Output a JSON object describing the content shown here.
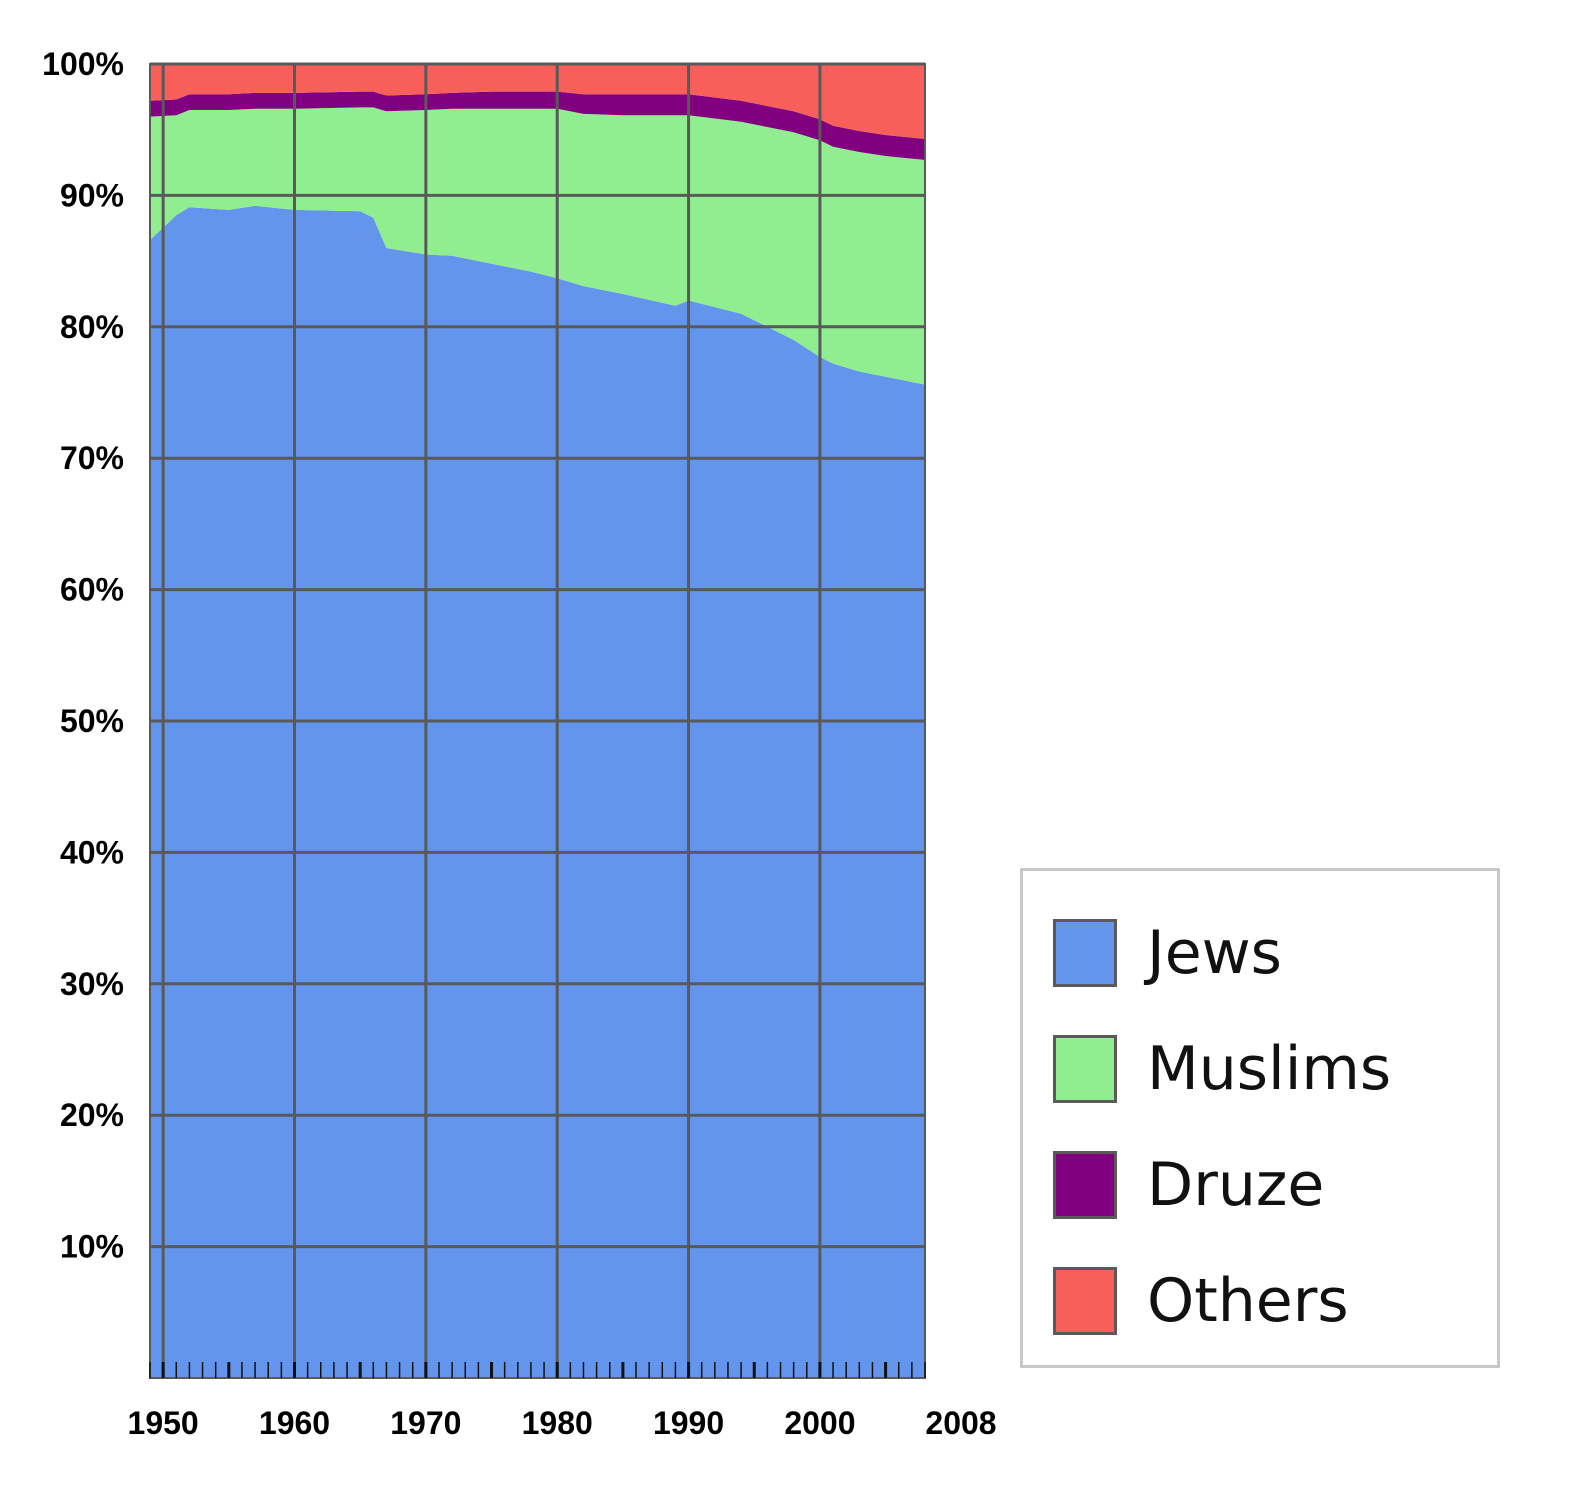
{
  "chart_data": {
    "type": "area",
    "stacked": true,
    "x": [
      1949,
      1951,
      1952,
      1955,
      1957,
      1960,
      1965,
      1966,
      1967,
      1970,
      1972,
      1975,
      1978,
      1980,
      1982,
      1985,
      1989,
      1990,
      1994,
      1995,
      1998,
      2000,
      2001,
      2003,
      2005,
      2007,
      2008
    ],
    "series": [
      {
        "name": "Jews",
        "color": "#6495ED",
        "values": [
          86.6,
          88.5,
          89.1,
          88.9,
          89.2,
          88.9,
          88.8,
          88.3,
          86.0,
          85.5,
          85.4,
          84.8,
          84.2,
          83.7,
          83.1,
          82.5,
          81.6,
          82.0,
          81.0,
          80.5,
          79.0,
          77.7,
          77.2,
          76.6,
          76.2,
          75.8,
          75.6
        ]
      },
      {
        "name": "Muslims",
        "color": "#90EE90",
        "values": [
          9.4,
          7.6,
          7.4,
          7.6,
          7.4,
          7.7,
          7.9,
          8.4,
          10.4,
          11.0,
          11.2,
          11.8,
          12.4,
          12.9,
          13.1,
          13.6,
          14.5,
          14.1,
          14.6,
          14.9,
          15.8,
          16.5,
          16.5,
          16.7,
          16.8,
          17.0,
          17.1
        ]
      },
      {
        "name": "Druze",
        "color": "#800080",
        "values": [
          1.2,
          1.2,
          1.2,
          1.2,
          1.2,
          1.2,
          1.2,
          1.2,
          1.2,
          1.2,
          1.2,
          1.3,
          1.3,
          1.3,
          1.5,
          1.6,
          1.6,
          1.6,
          1.6,
          1.6,
          1.6,
          1.6,
          1.6,
          1.6,
          1.6,
          1.6,
          1.6
        ]
      },
      {
        "name": "Others",
        "color": "#F85F5A",
        "values": [
          2.8,
          2.7,
          2.3,
          2.3,
          2.2,
          2.2,
          2.1,
          2.1,
          2.4,
          2.3,
          2.2,
          2.1,
          2.1,
          2.1,
          2.3,
          2.3,
          2.3,
          2.3,
          2.8,
          3.0,
          3.6,
          4.2,
          4.7,
          5.1,
          5.4,
          5.6,
          5.7
        ]
      }
    ],
    "xlim": [
      1949,
      2008
    ],
    "ylim": [
      0,
      100
    ],
    "y_tick_labels": [
      "10%",
      "20%",
      "30%",
      "40%",
      "50%",
      "60%",
      "70%",
      "80%",
      "90%",
      "100%"
    ],
    "y_tick_values": [
      10,
      20,
      30,
      40,
      50,
      60,
      70,
      80,
      90,
      100
    ],
    "x_tick_labels": [
      "1950",
      "1960",
      "1970",
      "1980",
      "1990",
      "2000",
      "2008"
    ],
    "x_tick_values": [
      1950,
      1960,
      1970,
      1980,
      1990,
      2000,
      2008
    ],
    "grid": true,
    "legend_position": "bottom-right",
    "title": "",
    "xlabel": "",
    "ylabel": ""
  }
}
